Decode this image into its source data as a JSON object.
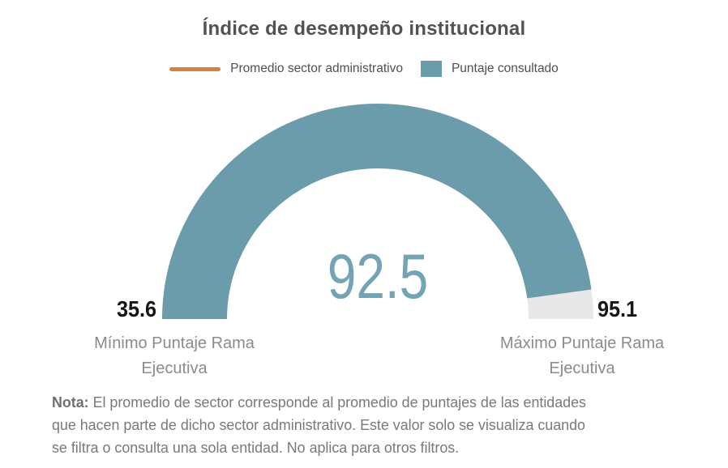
{
  "chart_data": {
    "type": "gauge",
    "title": "Índice de desempeño institucional",
    "value": 92.5,
    "value_display": "92.5",
    "min": 35.6,
    "min_display": "35.6",
    "max": 95.1,
    "max_display": "95.1",
    "min_label": "Mínimo Puntaje Rama Ejecutiva",
    "max_label": "Máximo Puntaje Rama Ejecutiva",
    "start_angle_deg": 180,
    "end_angle_deg": 0,
    "legend_position": "top-center",
    "legend": [
      {
        "label": "Promedio sector administrativo",
        "swatch": "line",
        "color": "#d8813d"
      },
      {
        "label": "Puntaje consultado",
        "swatch": "square",
        "color": "#6a9cac"
      }
    ],
    "colors": {
      "value_arc": "#6a9cac",
      "remainder_arc": "#e8e8e8",
      "value_text": "#74a3b3"
    }
  },
  "note": {
    "label": "Nota:",
    "lines": [
      " El promedio de sector corresponde al promedio de puntajes de las entidades",
      "que hacen parte de dicho sector administrativo. Este valor solo se visualiza cuando",
      "se filtra o consulta una sola entidad. No aplica para otros filtros."
    ]
  }
}
